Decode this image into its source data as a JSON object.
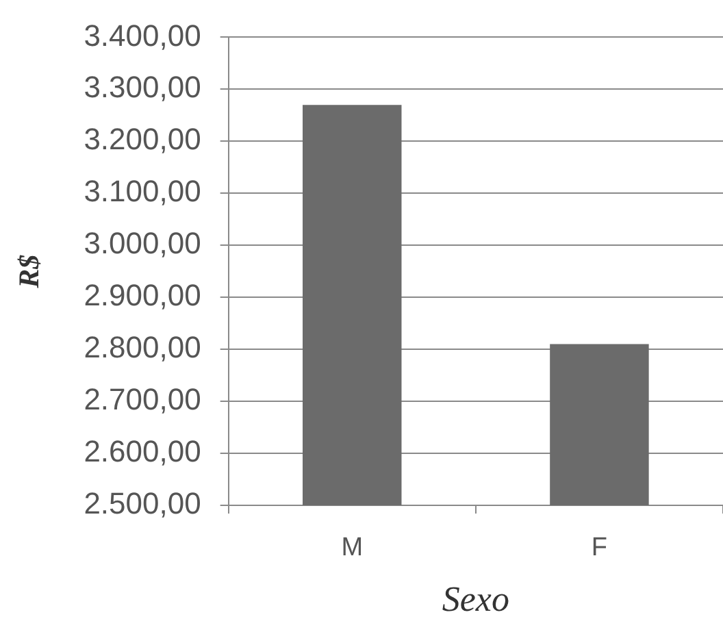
{
  "chart_data": {
    "type": "bar",
    "xlabel": "Sexo",
    "ylabel": "R$",
    "categories": [
      "M",
      "F"
    ],
    "values": [
      3270,
      2810
    ],
    "color": "#6b6b6b",
    "ylim": [
      2500,
      3400
    ],
    "yticks": [
      {
        "value": 2500,
        "label": "2.500,00"
      },
      {
        "value": 2600,
        "label": "2.600,00"
      },
      {
        "value": 2700,
        "label": "2.700,00"
      },
      {
        "value": 2800,
        "label": "2.800,00"
      },
      {
        "value": 2900,
        "label": "2.900,00"
      },
      {
        "value": 3000,
        "label": "3.000,00"
      },
      {
        "value": 3100,
        "label": "3.100,00"
      },
      {
        "value": 3200,
        "label": "3.200,00"
      },
      {
        "value": 3300,
        "label": "3.300,00"
      },
      {
        "value": 3400,
        "label": "3.400,00"
      }
    ],
    "grid": "y",
    "legend": false
  }
}
